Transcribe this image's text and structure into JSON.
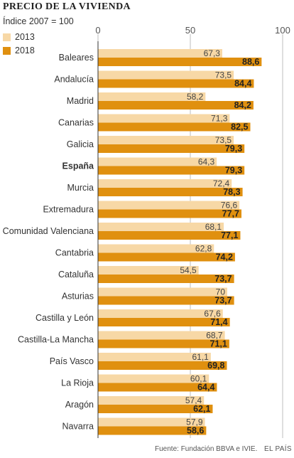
{
  "chart_data": {
    "type": "bar",
    "orientation": "horizontal",
    "title": "PRECIO DE LA VIVIENDA",
    "subtitle": "Índice 2007 = 100",
    "categories": [
      "Baleares",
      "Andalucía",
      "Madrid",
      "Canarias",
      "Galicia",
      "España",
      "Murcia",
      "Extremadura",
      "Comunidad Valenciana",
      "Cantabria",
      "Cataluña",
      "Asturias",
      "Castilla y León",
      "Castilla-La Mancha",
      "País Vasco",
      "La Rioja",
      "Aragón",
      "Navarra"
    ],
    "highlight_category": "España",
    "series": [
      {
        "name": "2013",
        "color": "#f7d8a6",
        "values": [
          67.3,
          73.5,
          58.2,
          71.3,
          73.5,
          64.3,
          72.4,
          76.6,
          68.1,
          62.8,
          54.5,
          70,
          67.6,
          68.7,
          61.1,
          60.1,
          57.4,
          57.9
        ],
        "labels": [
          "67,3",
          "73,5",
          "58,2",
          "71,3",
          "73,5",
          "64,3",
          "72,4",
          "76,6",
          "68,1",
          "62,8",
          "54,5",
          "70",
          "67,6",
          "68,7",
          "61,1",
          "60,1",
          "57,4",
          "57,9"
        ]
      },
      {
        "name": "2018",
        "color": "#e0900f",
        "values": [
          88.6,
          84.4,
          84.2,
          82.5,
          79.3,
          79.3,
          78.3,
          77.7,
          77.1,
          74.2,
          73.7,
          73.7,
          71.4,
          71.1,
          69.8,
          64.4,
          62.1,
          58.6
        ],
        "labels": [
          "88,6",
          "84,4",
          "84,2",
          "82,5",
          "79,3",
          "79,3",
          "78,3",
          "77,7",
          "77,1",
          "74,2",
          "73,7",
          "73,7",
          "71,4",
          "71,1",
          "69,8",
          "64,4",
          "62,1",
          "58,6"
        ]
      }
    ],
    "x_ticks": [
      0,
      50,
      100
    ],
    "x_tick_labels": [
      "0",
      "50",
      "100"
    ],
    "xlim": [
      0,
      100
    ],
    "grid": true,
    "legend_position": "top-left"
  },
  "footer": {
    "source": "Fuente: Fundación BBVA e IVIE.",
    "brand": "EL PAÍS"
  }
}
